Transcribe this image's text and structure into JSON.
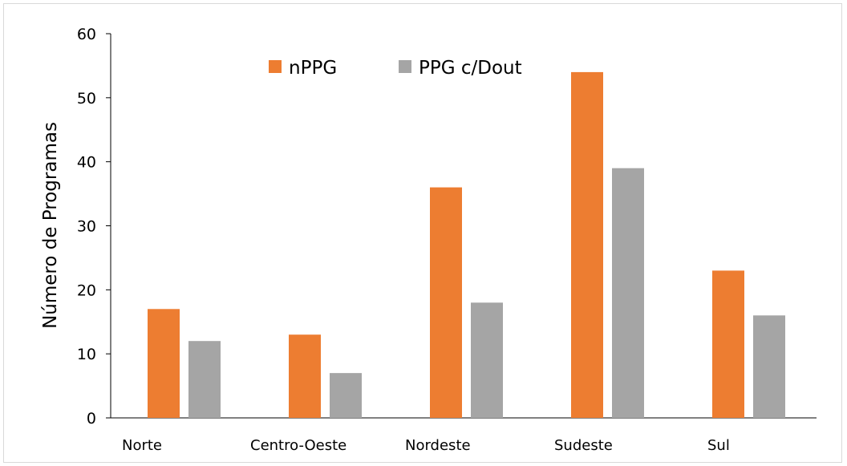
{
  "chart_data": {
    "type": "bar",
    "categories": [
      "Norte",
      "Centro-Oeste",
      "Nordeste",
      "Sudeste",
      "Sul"
    ],
    "series": [
      {
        "name": "nPPG",
        "values": [
          17,
          13,
          36,
          54,
          23
        ],
        "color": "#ED7D31"
      },
      {
        "name": "PPG c/Dout",
        "values": [
          12,
          7,
          18,
          39,
          16
        ],
        "color": "#A5A5A5"
      }
    ],
    "title": "",
    "xlabel": "",
    "ylabel": "Número de Programas",
    "ylim": [
      0,
      60
    ],
    "yticks": [
      0,
      10,
      20,
      30,
      40,
      50,
      60
    ],
    "grid": false,
    "legend_position": "top"
  }
}
